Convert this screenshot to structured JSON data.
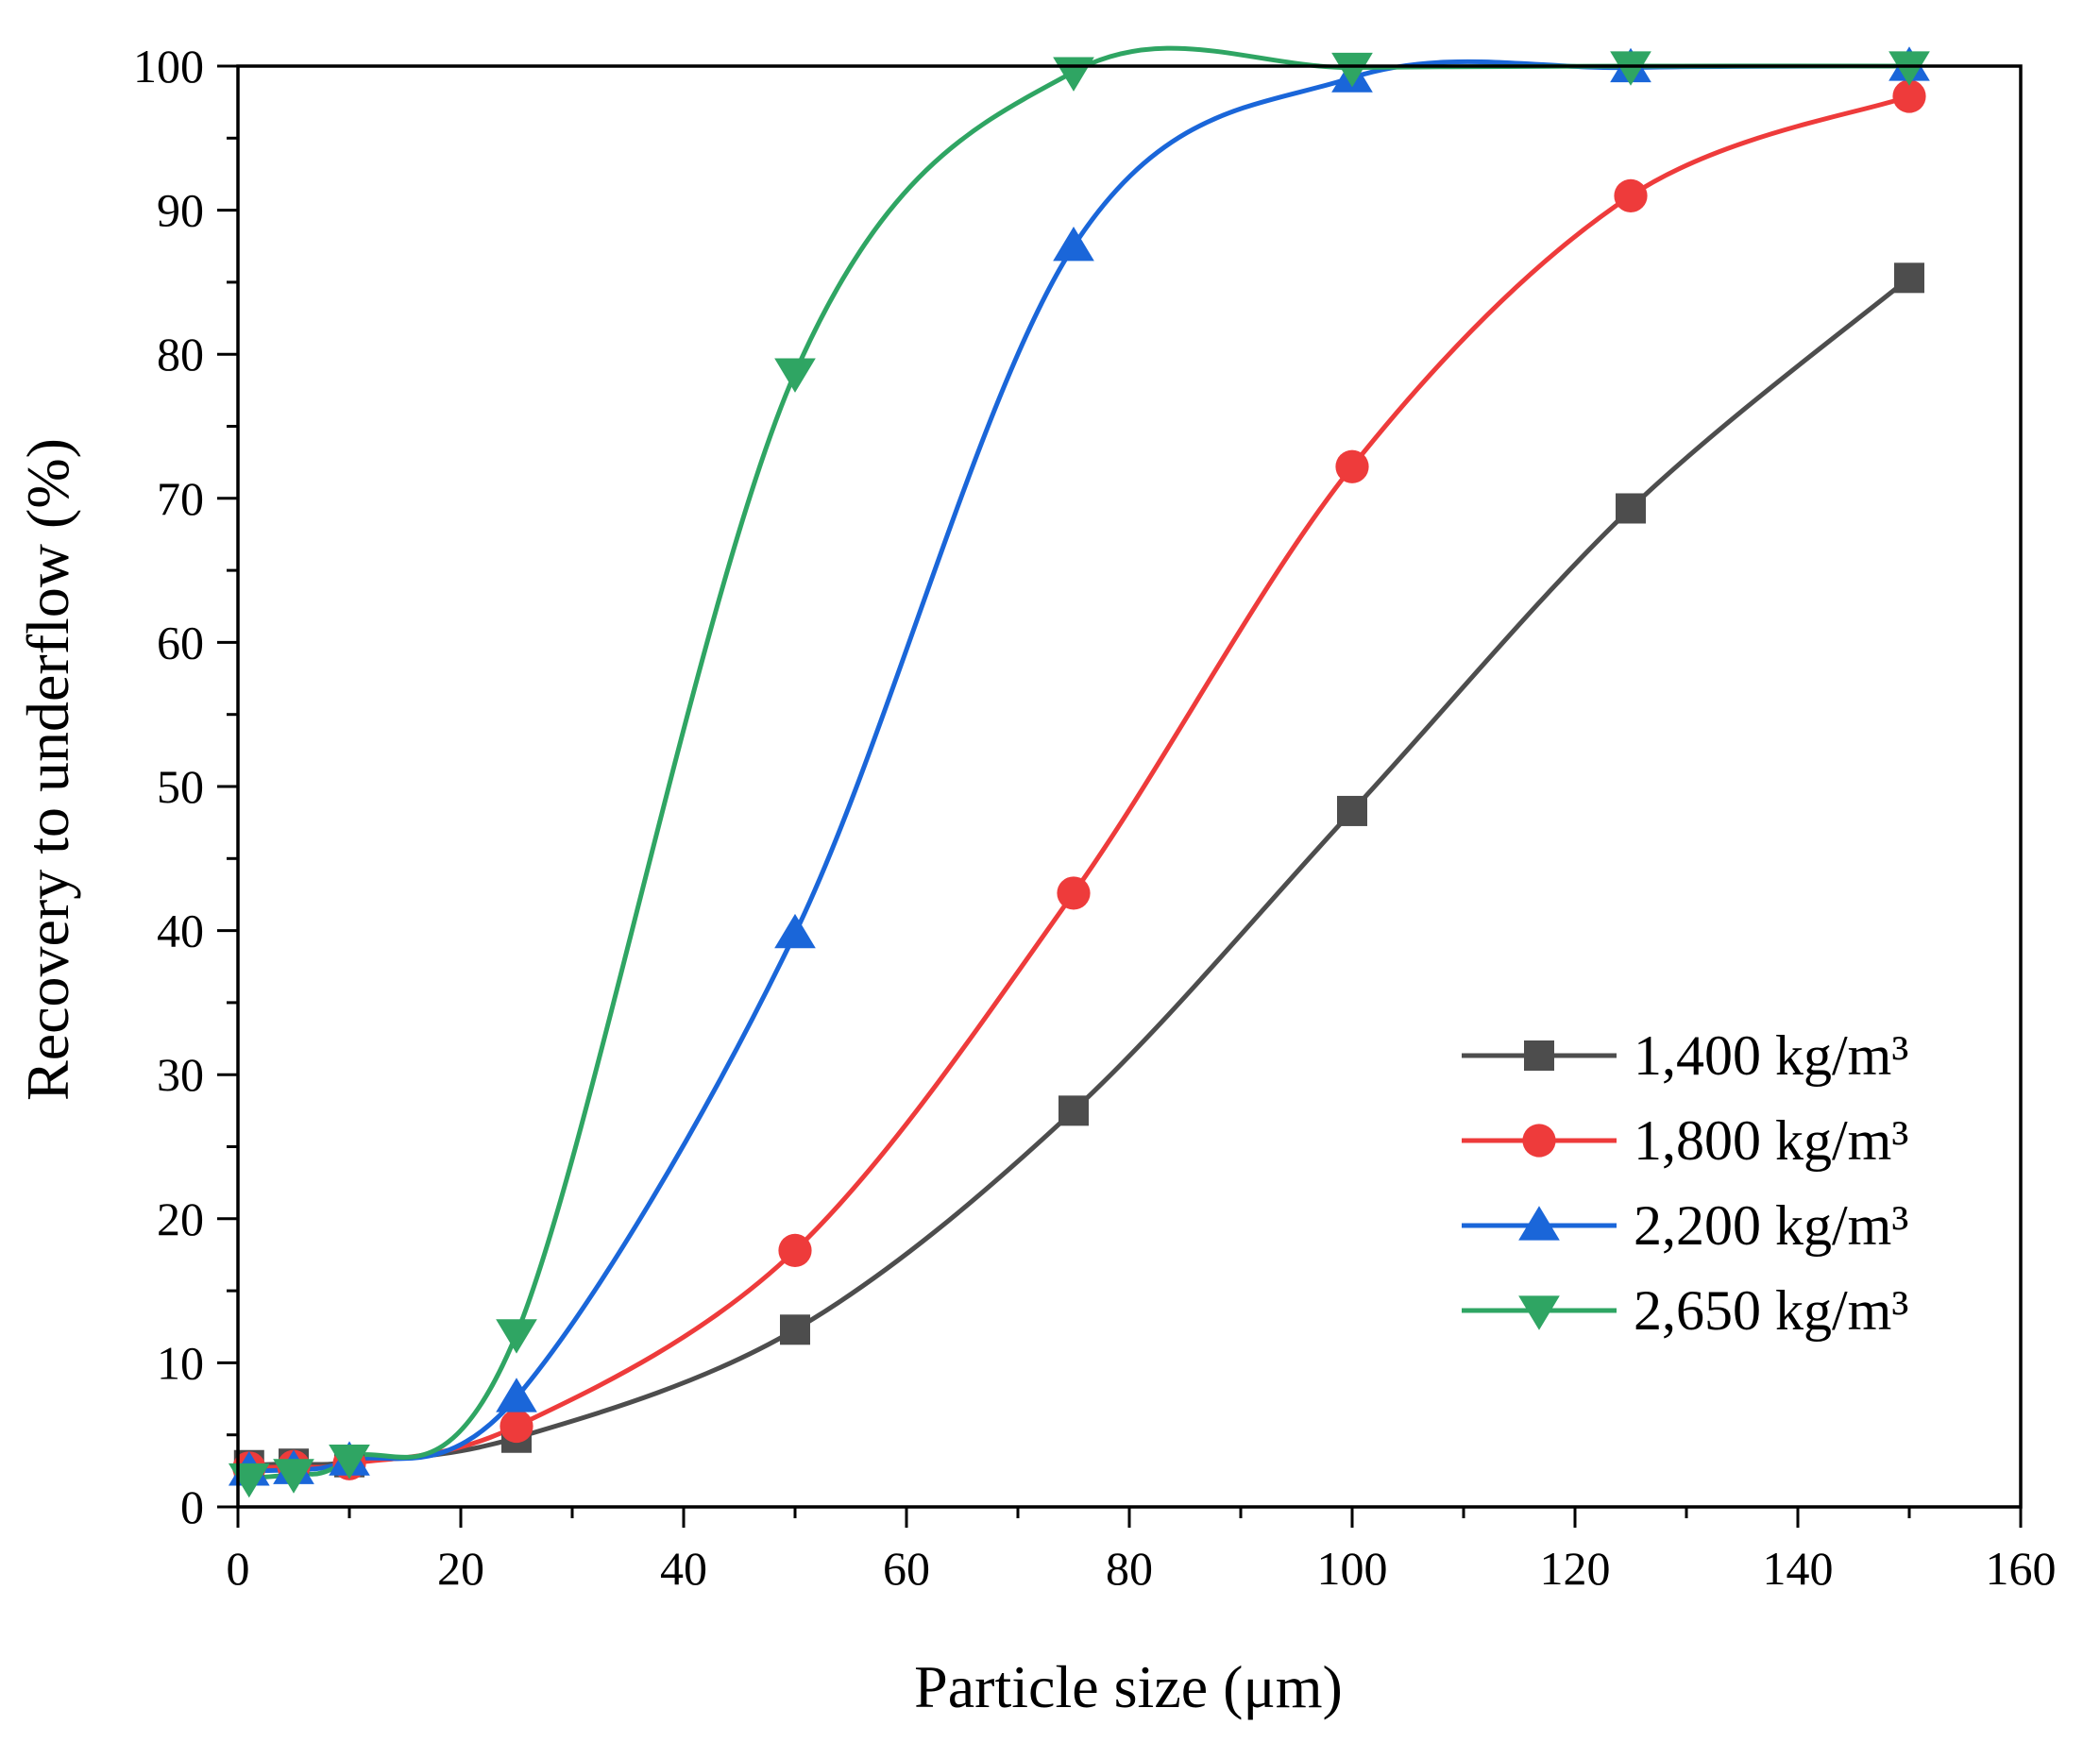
{
  "chart_data": {
    "type": "line",
    "title": "",
    "xlabel": "Particle size (μm)",
    "ylabel": "Recovery to underflow (%)",
    "xlim": [
      0,
      160
    ],
    "ylim": [
      0,
      100
    ],
    "xticks": [
      0,
      20,
      40,
      60,
      80,
      100,
      120,
      140,
      160
    ],
    "yticks": [
      0,
      10,
      20,
      30,
      40,
      50,
      60,
      70,
      80,
      90,
      100
    ],
    "xtick_labels": [
      "0",
      "20",
      "40",
      "60",
      "80",
      "100",
      "120",
      "140",
      "160"
    ],
    "ytick_labels": [
      "0",
      "10",
      "20",
      "30",
      "40",
      "50",
      "60",
      "70",
      "80",
      "90",
      "100"
    ],
    "grid": false,
    "legend_position": "bottom-right",
    "x": [
      1,
      5,
      10,
      25,
      50,
      75,
      100,
      125,
      150
    ],
    "series": [
      {
        "name": "1,400 kg/m³",
        "color": "#4d4d4d",
        "marker": "square",
        "values": [
          2.9,
          3.0,
          3.1,
          4.8,
          12.3,
          27.5,
          48.3,
          69.3,
          85.3
        ]
      },
      {
        "name": "1,800 kg/m³",
        "color": "#ee3b3b",
        "marker": "circle",
        "values": [
          2.7,
          2.8,
          3.0,
          5.6,
          17.8,
          42.6,
          72.2,
          91.0,
          97.9
        ]
      },
      {
        "name": "2,200 kg/m³",
        "color": "#1a66d9",
        "marker": "triangle-up",
        "values": [
          2.5,
          2.6,
          3.2,
          7.6,
          39.8,
          87.5,
          99.2,
          99.9,
          100.0
        ]
      },
      {
        "name": "2,650 kg/m³",
        "color": "#2fa563",
        "marker": "triangle-down",
        "values": [
          2.0,
          2.3,
          3.3,
          12.0,
          78.7,
          99.6,
          99.9,
          100.0,
          100.0
        ]
      }
    ]
  }
}
